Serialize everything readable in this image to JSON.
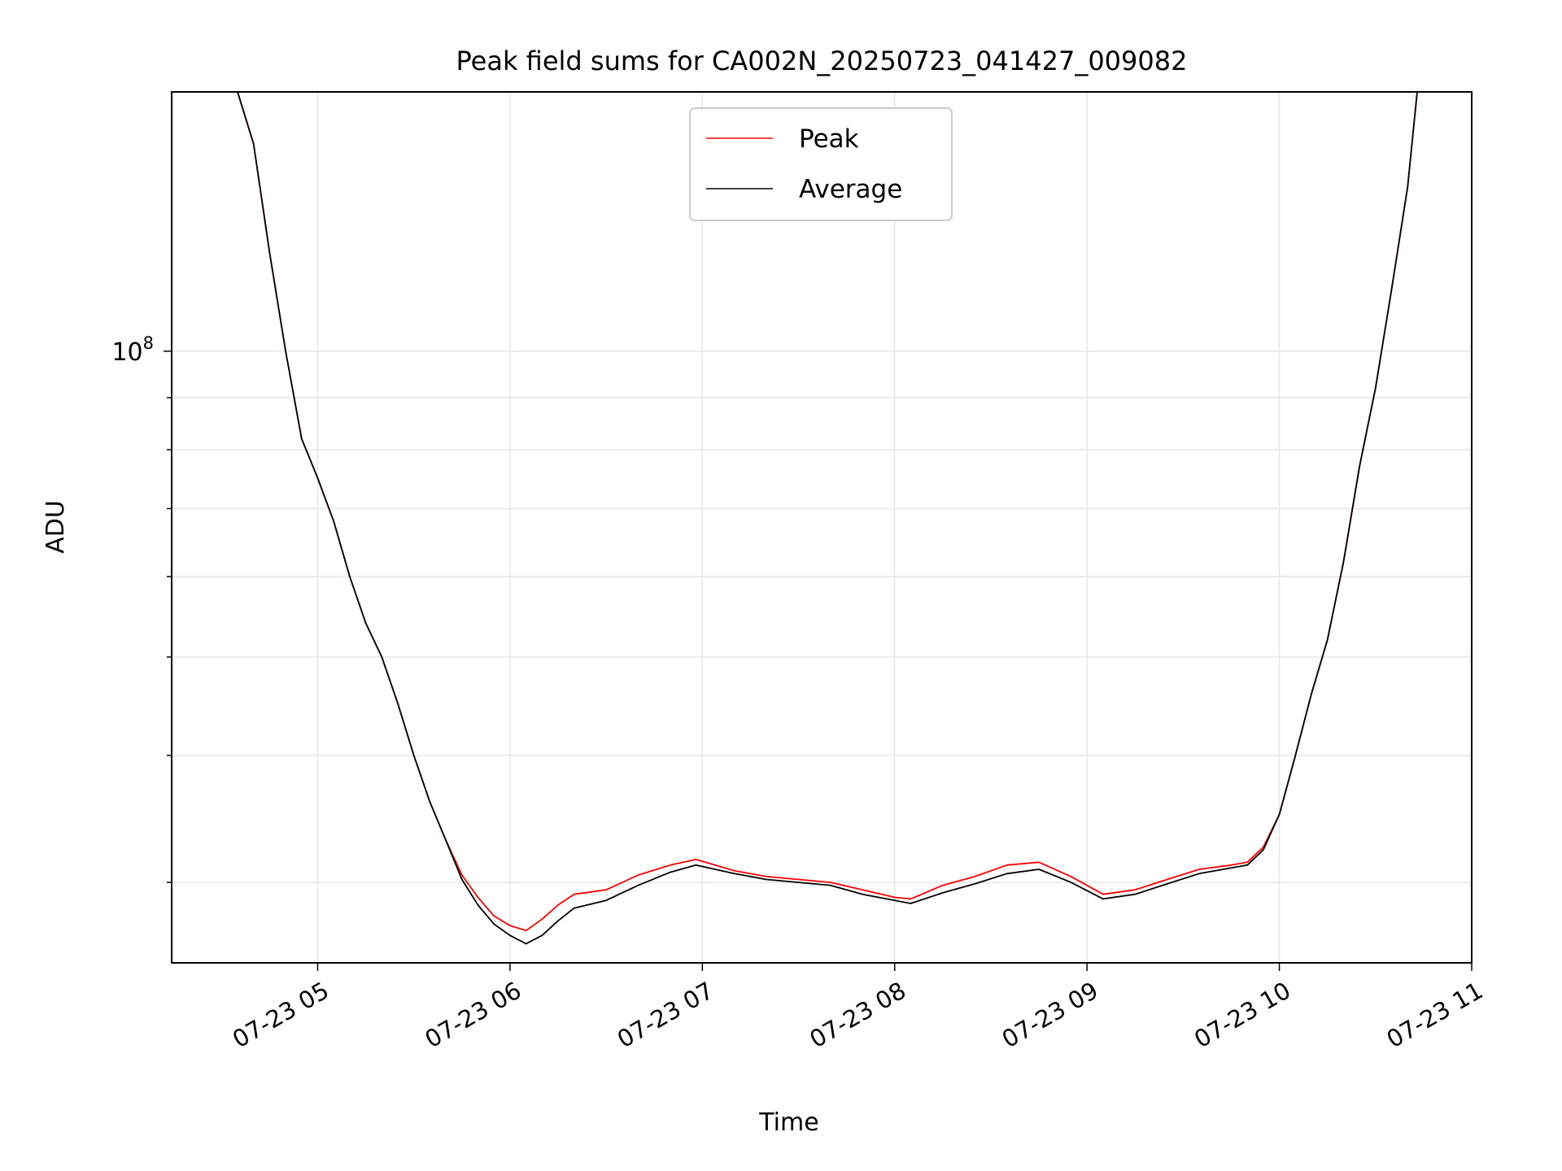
{
  "chart_data": {
    "type": "line",
    "title": "Peak field sums for CA002N_20250723_041427_009082",
    "xlabel": "Time",
    "ylabel": "ADU",
    "x_scale": "time",
    "y_scale": "log",
    "grid": true,
    "legend_position": "upper center",
    "xlim": [
      "2025-07-23 04:14:27",
      "2025-07-23 11:00:00"
    ],
    "ylim": [
      25000000,
      180000000
    ],
    "x_ticks": [
      {
        "value": "2025-07-23 05:00",
        "label": "07-23 05"
      },
      {
        "value": "2025-07-23 06:00",
        "label": "07-23 06"
      },
      {
        "value": "2025-07-23 07:00",
        "label": "07-23 07"
      },
      {
        "value": "2025-07-23 08:00",
        "label": "07-23 08"
      },
      {
        "value": "2025-07-23 09:00",
        "label": "07-23 09"
      },
      {
        "value": "2025-07-23 10:00",
        "label": "07-23 10"
      },
      {
        "value": "2025-07-23 11:00",
        "label": "07-23 11"
      }
    ],
    "y_major_tick": {
      "value": 100000000,
      "label_base": "10",
      "label_exponent": "8"
    },
    "y_minor_ticks": [
      30000000,
      40000000,
      50000000,
      60000000,
      70000000,
      80000000,
      90000000,
      200000000
    ],
    "series": [
      {
        "name": "Peak",
        "color": "#ff0000",
        "x": [
          "2025-07-23 04:35",
          "2025-07-23 04:40",
          "2025-07-23 04:45",
          "2025-07-23 04:50",
          "2025-07-23 04:55",
          "2025-07-23 05:00",
          "2025-07-23 05:05",
          "2025-07-23 05:10",
          "2025-07-23 05:15",
          "2025-07-23 05:20",
          "2025-07-23 05:25",
          "2025-07-23 05:30",
          "2025-07-23 05:35",
          "2025-07-23 05:40",
          "2025-07-23 05:45",
          "2025-07-23 05:50",
          "2025-07-23 05:55",
          "2025-07-23 06:00",
          "2025-07-23 06:05",
          "2025-07-23 06:10",
          "2025-07-23 06:15",
          "2025-07-23 06:20",
          "2025-07-23 06:30",
          "2025-07-23 06:40",
          "2025-07-23 06:50",
          "2025-07-23 06:58",
          "2025-07-23 07:10",
          "2025-07-23 07:20",
          "2025-07-23 07:30",
          "2025-07-23 07:40",
          "2025-07-23 07:50",
          "2025-07-23 08:00",
          "2025-07-23 08:05",
          "2025-07-23 08:15",
          "2025-07-23 08:25",
          "2025-07-23 08:35",
          "2025-07-23 08:45",
          "2025-07-23 08:55",
          "2025-07-23 09:05",
          "2025-07-23 09:15",
          "2025-07-23 09:25",
          "2025-07-23 09:35",
          "2025-07-23 09:45",
          "2025-07-23 09:50",
          "2025-07-23 09:55",
          "2025-07-23 10:00",
          "2025-07-23 10:05",
          "2025-07-23 10:10",
          "2025-07-23 10:15",
          "2025-07-23 10:20",
          "2025-07-23 10:25",
          "2025-07-23 10:30",
          "2025-07-23 10:35",
          "2025-07-23 10:40",
          "2025-07-23 10:43"
        ],
        "y": [
          180000000,
          160000000,
          125000000,
          100000000,
          82000000,
          75000000,
          68000000,
          60000000,
          54000000,
          50000000,
          45000000,
          40000000,
          36000000,
          33000000,
          30500000,
          29000000,
          27800000,
          27200000,
          26900000,
          27600000,
          28500000,
          29200000,
          29500000,
          30500000,
          31200000,
          31600000,
          30800000,
          30400000,
          30200000,
          30000000,
          29500000,
          29000000,
          28900000,
          29800000,
          30400000,
          31200000,
          31400000,
          30400000,
          29200000,
          29500000,
          30200000,
          30900000,
          31200000,
          31400000,
          32500000,
          35000000,
          40000000,
          46000000,
          52000000,
          62000000,
          77000000,
          92000000,
          115000000,
          145000000,
          180000000
        ]
      },
      {
        "name": "Average",
        "color": "#000000",
        "x": [
          "2025-07-23 04:35",
          "2025-07-23 04:40",
          "2025-07-23 04:45",
          "2025-07-23 04:50",
          "2025-07-23 04:55",
          "2025-07-23 05:00",
          "2025-07-23 05:05",
          "2025-07-23 05:10",
          "2025-07-23 05:15",
          "2025-07-23 05:20",
          "2025-07-23 05:25",
          "2025-07-23 05:30",
          "2025-07-23 05:35",
          "2025-07-23 05:40",
          "2025-07-23 05:45",
          "2025-07-23 05:50",
          "2025-07-23 05:55",
          "2025-07-23 06:00",
          "2025-07-23 06:05",
          "2025-07-23 06:10",
          "2025-07-23 06:15",
          "2025-07-23 06:20",
          "2025-07-23 06:30",
          "2025-07-23 06:40",
          "2025-07-23 06:50",
          "2025-07-23 06:58",
          "2025-07-23 07:10",
          "2025-07-23 07:20",
          "2025-07-23 07:30",
          "2025-07-23 07:40",
          "2025-07-23 07:50",
          "2025-07-23 08:00",
          "2025-07-23 08:05",
          "2025-07-23 08:15",
          "2025-07-23 08:25",
          "2025-07-23 08:35",
          "2025-07-23 08:45",
          "2025-07-23 08:55",
          "2025-07-23 09:05",
          "2025-07-23 09:15",
          "2025-07-23 09:25",
          "2025-07-23 09:35",
          "2025-07-23 09:45",
          "2025-07-23 09:50",
          "2025-07-23 09:55",
          "2025-07-23 10:00",
          "2025-07-23 10:05",
          "2025-07-23 10:10",
          "2025-07-23 10:15",
          "2025-07-23 10:20",
          "2025-07-23 10:25",
          "2025-07-23 10:30",
          "2025-07-23 10:35",
          "2025-07-23 10:40",
          "2025-07-23 10:43"
        ],
        "y": [
          180000000,
          160000000,
          125000000,
          100000000,
          82000000,
          75000000,
          68000000,
          60000000,
          54000000,
          50000000,
          45000000,
          40000000,
          36000000,
          33000000,
          30200000,
          28500000,
          27300000,
          26600000,
          26100000,
          26600000,
          27500000,
          28300000,
          28800000,
          29800000,
          30700000,
          31200000,
          30600000,
          30200000,
          30000000,
          29800000,
          29200000,
          28800000,
          28600000,
          29300000,
          29900000,
          30600000,
          30900000,
          30000000,
          28900000,
          29200000,
          29900000,
          30600000,
          31000000,
          31200000,
          32300000,
          35000000,
          40000000,
          46000000,
          52000000,
          62000000,
          77000000,
          92000000,
          115000000,
          145000000,
          180000000
        ]
      }
    ]
  }
}
